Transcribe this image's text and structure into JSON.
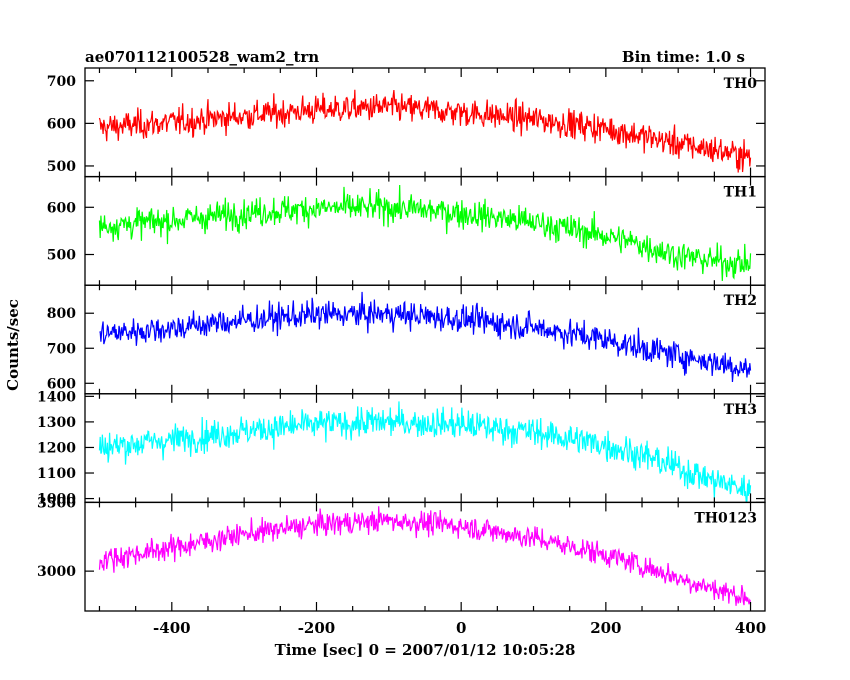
{
  "chart_data": {
    "type": "line",
    "title_left": "ae070112100528_wam2_trn",
    "title_right": "Bin time: 1.0 s",
    "xlabel": "Time [sec] 0 = 2007/01/12 10:05:28",
    "ylabel": "Counts/sec",
    "xlim": [
      -520,
      420
    ],
    "x_ticks": [
      -400,
      -200,
      0,
      200,
      400
    ],
    "x_start": -500,
    "x_end": 400,
    "x_step": 1,
    "panels": [
      {
        "name": "TH0",
        "color": "#ff0000",
        "ylim": [
          475,
          730
        ],
        "yticks": [
          500,
          600,
          700
        ],
        "trend_x": [
          -500,
          -400,
          -300,
          -200,
          -100,
          0,
          100,
          200,
          250,
          300,
          350,
          400
        ],
        "trend_y": [
          590,
          602,
          618,
          632,
          638,
          626,
          610,
          588,
          570,
          552,
          538,
          520
        ],
        "noise": 24
      },
      {
        "name": "TH1",
        "color": "#00ff00",
        "ylim": [
          435,
          665
        ],
        "yticks": [
          500,
          600
        ],
        "trend_x": [
          -500,
          -400,
          -300,
          -200,
          -100,
          0,
          100,
          200,
          250,
          300,
          350,
          400
        ],
        "trend_y": [
          560,
          572,
          588,
          598,
          600,
          588,
          568,
          540,
          520,
          498,
          486,
          480
        ],
        "noise": 22
      },
      {
        "name": "TH2",
        "color": "#0000ff",
        "ylim": [
          570,
          880
        ],
        "yticks": [
          600,
          700,
          800
        ],
        "trend_x": [
          -500,
          -400,
          -300,
          -200,
          -100,
          0,
          100,
          200,
          250,
          300,
          350,
          400
        ],
        "trend_y": [
          740,
          758,
          780,
          796,
          798,
          784,
          760,
          725,
          700,
          680,
          660,
          640
        ],
        "noise": 28
      },
      {
        "name": "TH3",
        "color": "#00ffff",
        "ylim": [
          985,
          1410
        ],
        "yticks": [
          1000,
          1100,
          1200,
          1300,
          1400
        ],
        "trend_x": [
          -500,
          -400,
          -300,
          -200,
          -100,
          0,
          100,
          200,
          250,
          300,
          350,
          400
        ],
        "trend_y": [
          1200,
          1230,
          1265,
          1290,
          1300,
          1290,
          1260,
          1210,
          1170,
          1120,
          1070,
          1030
        ],
        "noise": 42
      },
      {
        "name": "TH0123",
        "color": "#ff00ff",
        "ylim": [
          2710,
          3500
        ],
        "yticks": [
          3000,
          3500
        ],
        "trend_x": [
          -500,
          -400,
          -300,
          -200,
          -100,
          0,
          100,
          200,
          250,
          300,
          350,
          400
        ],
        "trend_y": [
          3080,
          3170,
          3270,
          3340,
          3370,
          3330,
          3240,
          3120,
          3040,
          2950,
          2870,
          2800
        ],
        "noise": 60
      }
    ]
  }
}
